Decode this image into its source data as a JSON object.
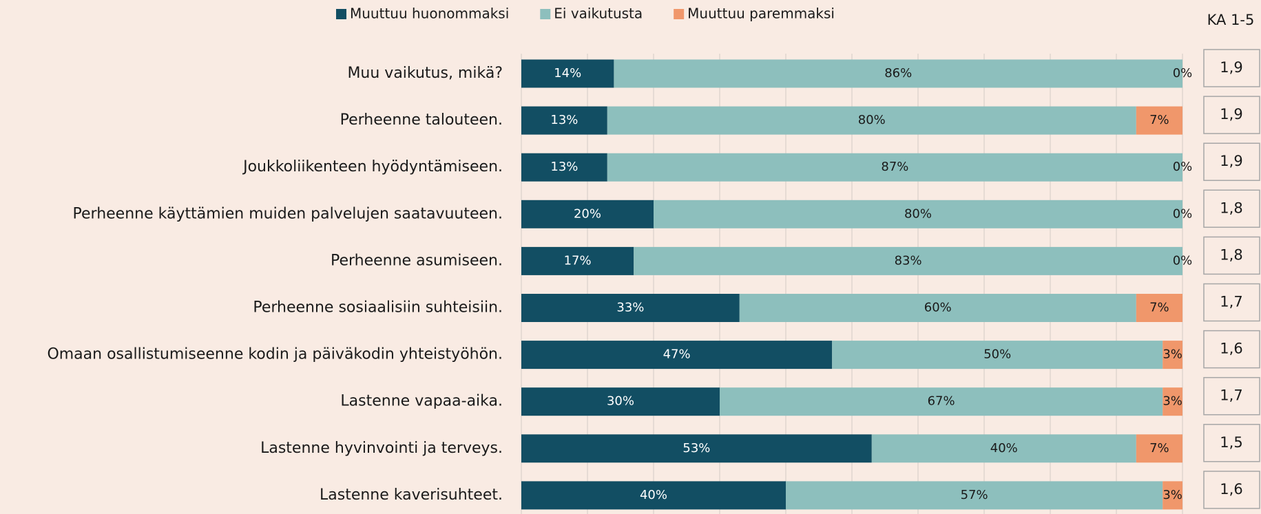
{
  "chart_data": {
    "type": "stacked_barh",
    "categories": [
      "Muu vaikutus, mikä?",
      "Perheenne talouteen.",
      "Joukkoliikenteen hyödyntämiseen.",
      "Perheenne käyttämien muiden palvelujen saatavuuteen.",
      "Perheenne asumiseen.",
      "Perheenne sosiaalisiin suhteisiin.",
      "Omaan osallistumiseenne kodin ja päiväkodin yhteistyöhön.",
      "Lastenne vapaa-aika.",
      "Lastenne hyvinvointi ja terveys.",
      "Lastenne kaverisuhteet."
    ],
    "series": [
      {
        "name": "Muuttuu huonommaksi",
        "color": "#124e63",
        "label_color": "#ffffff",
        "values": [
          14,
          13,
          13,
          20,
          17,
          33,
          47,
          30,
          53,
          40
        ],
        "value_labels": [
          "14%",
          "13%",
          "13%",
          "20%",
          "17%",
          "33%",
          "47%",
          "30%",
          "53%",
          "40%"
        ]
      },
      {
        "name": "Ei vaikutusta",
        "color": "#8dbfbd",
        "label_color": "#1a1a1a",
        "values": [
          86,
          80,
          87,
          80,
          83,
          60,
          50,
          67,
          40,
          57
        ],
        "value_labels": [
          "86%",
          "80%",
          "87%",
          "80%",
          "83%",
          "60%",
          "50%",
          "67%",
          "40%",
          "57%"
        ]
      },
      {
        "name": "Muuttuu paremmaksi",
        "color": "#f0976b",
        "label_color": "#1a1a1a",
        "values": [
          0,
          7,
          0,
          0,
          0,
          7,
          3,
          3,
          7,
          3
        ],
        "value_labels": [
          "0%",
          "7%",
          "0%",
          "0%",
          "0%",
          "7%",
          "3%",
          "3%",
          "7%",
          "3%"
        ]
      }
    ],
    "xlim": [
      0,
      100
    ],
    "xticks": [
      0,
      10,
      20,
      30,
      40,
      50,
      60,
      70,
      80,
      90,
      100
    ],
    "xtick_labels": false,
    "grid": true,
    "legend": "top",
    "averages": {
      "title": "KA 1-5",
      "values": [
        1.9,
        1.9,
        1.9,
        1.8,
        1.8,
        1.7,
        1.6,
        1.7,
        1.5,
        1.6
      ],
      "value_labels": [
        "1,9",
        "1,9",
        "1,9",
        "1,8",
        "1,8",
        "1,7",
        "1,6",
        "1,7",
        "1,5",
        "1,6"
      ]
    }
  }
}
